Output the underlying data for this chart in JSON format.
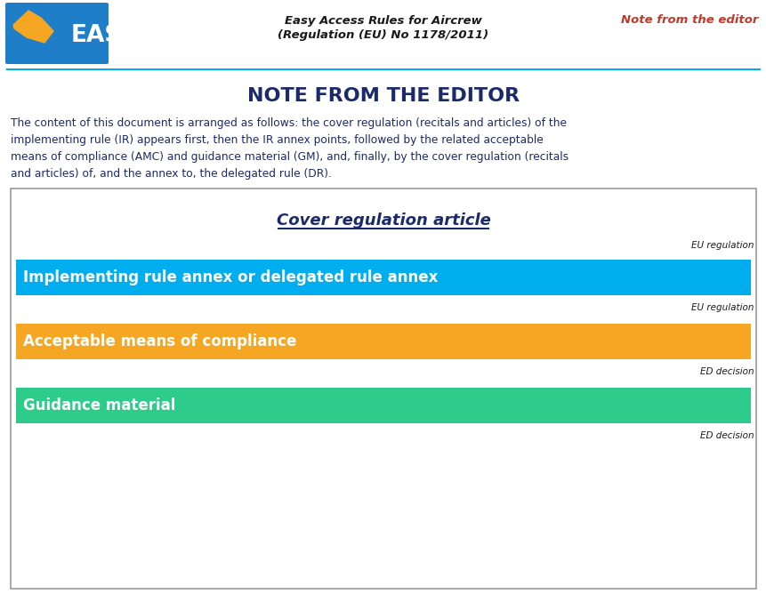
{
  "bg_color": "#ffffff",
  "header_line_color": "#00AEEF",
  "header_title_line1": "Easy Access Rules for Aircrew",
  "header_title_line2": "(Regulation (EU) No 1178/2011)",
  "header_right_text": "Note from the editor",
  "header_title_color": "#1a1a1a",
  "header_right_color": "#C0392B",
  "easa_bg_color": "#1E7EC8",
  "easa_logo_yellow": "#F5A623",
  "main_title": "NOTE FROM THE EDITOR",
  "main_title_color": "#1B2A6B",
  "body_lines": [
    "The content of this document is arranged as follows: the cover regulation (recitals and articles) of the",
    "implementing rule (IR) appears first, then the IR annex points, followed by the related acceptable",
    "means of compliance (AMC) and guidance material (GM), and, finally, by the cover regulation (recitals",
    "and articles) of, and the annex to, the delegated rule (DR)."
  ],
  "body_text_color": "#1B2A6B",
  "box_border_color": "#999999",
  "cover_reg_text": "Cover regulation article",
  "cover_reg_color": "#1B2A6B",
  "eu_reg_label_1": "EU regulation",
  "eu_reg_label_2": "EU regulation",
  "ed_dec_label_1": "ED decision",
  "ed_dec_label_2": "ED decision",
  "label_color": "#1a1a1a",
  "bar1_color": "#00AEEF",
  "bar1_text": "Implementing rule annex or delegated rule annex",
  "bar1_text_color": "#ffffff",
  "bar2_color": "#F5A623",
  "bar2_text": "Acceptable means of compliance",
  "bar2_text_color": "#ffffff",
  "bar3_color": "#2ECC8A",
  "bar3_text": "Guidance material",
  "bar3_text_color": "#ffffff"
}
